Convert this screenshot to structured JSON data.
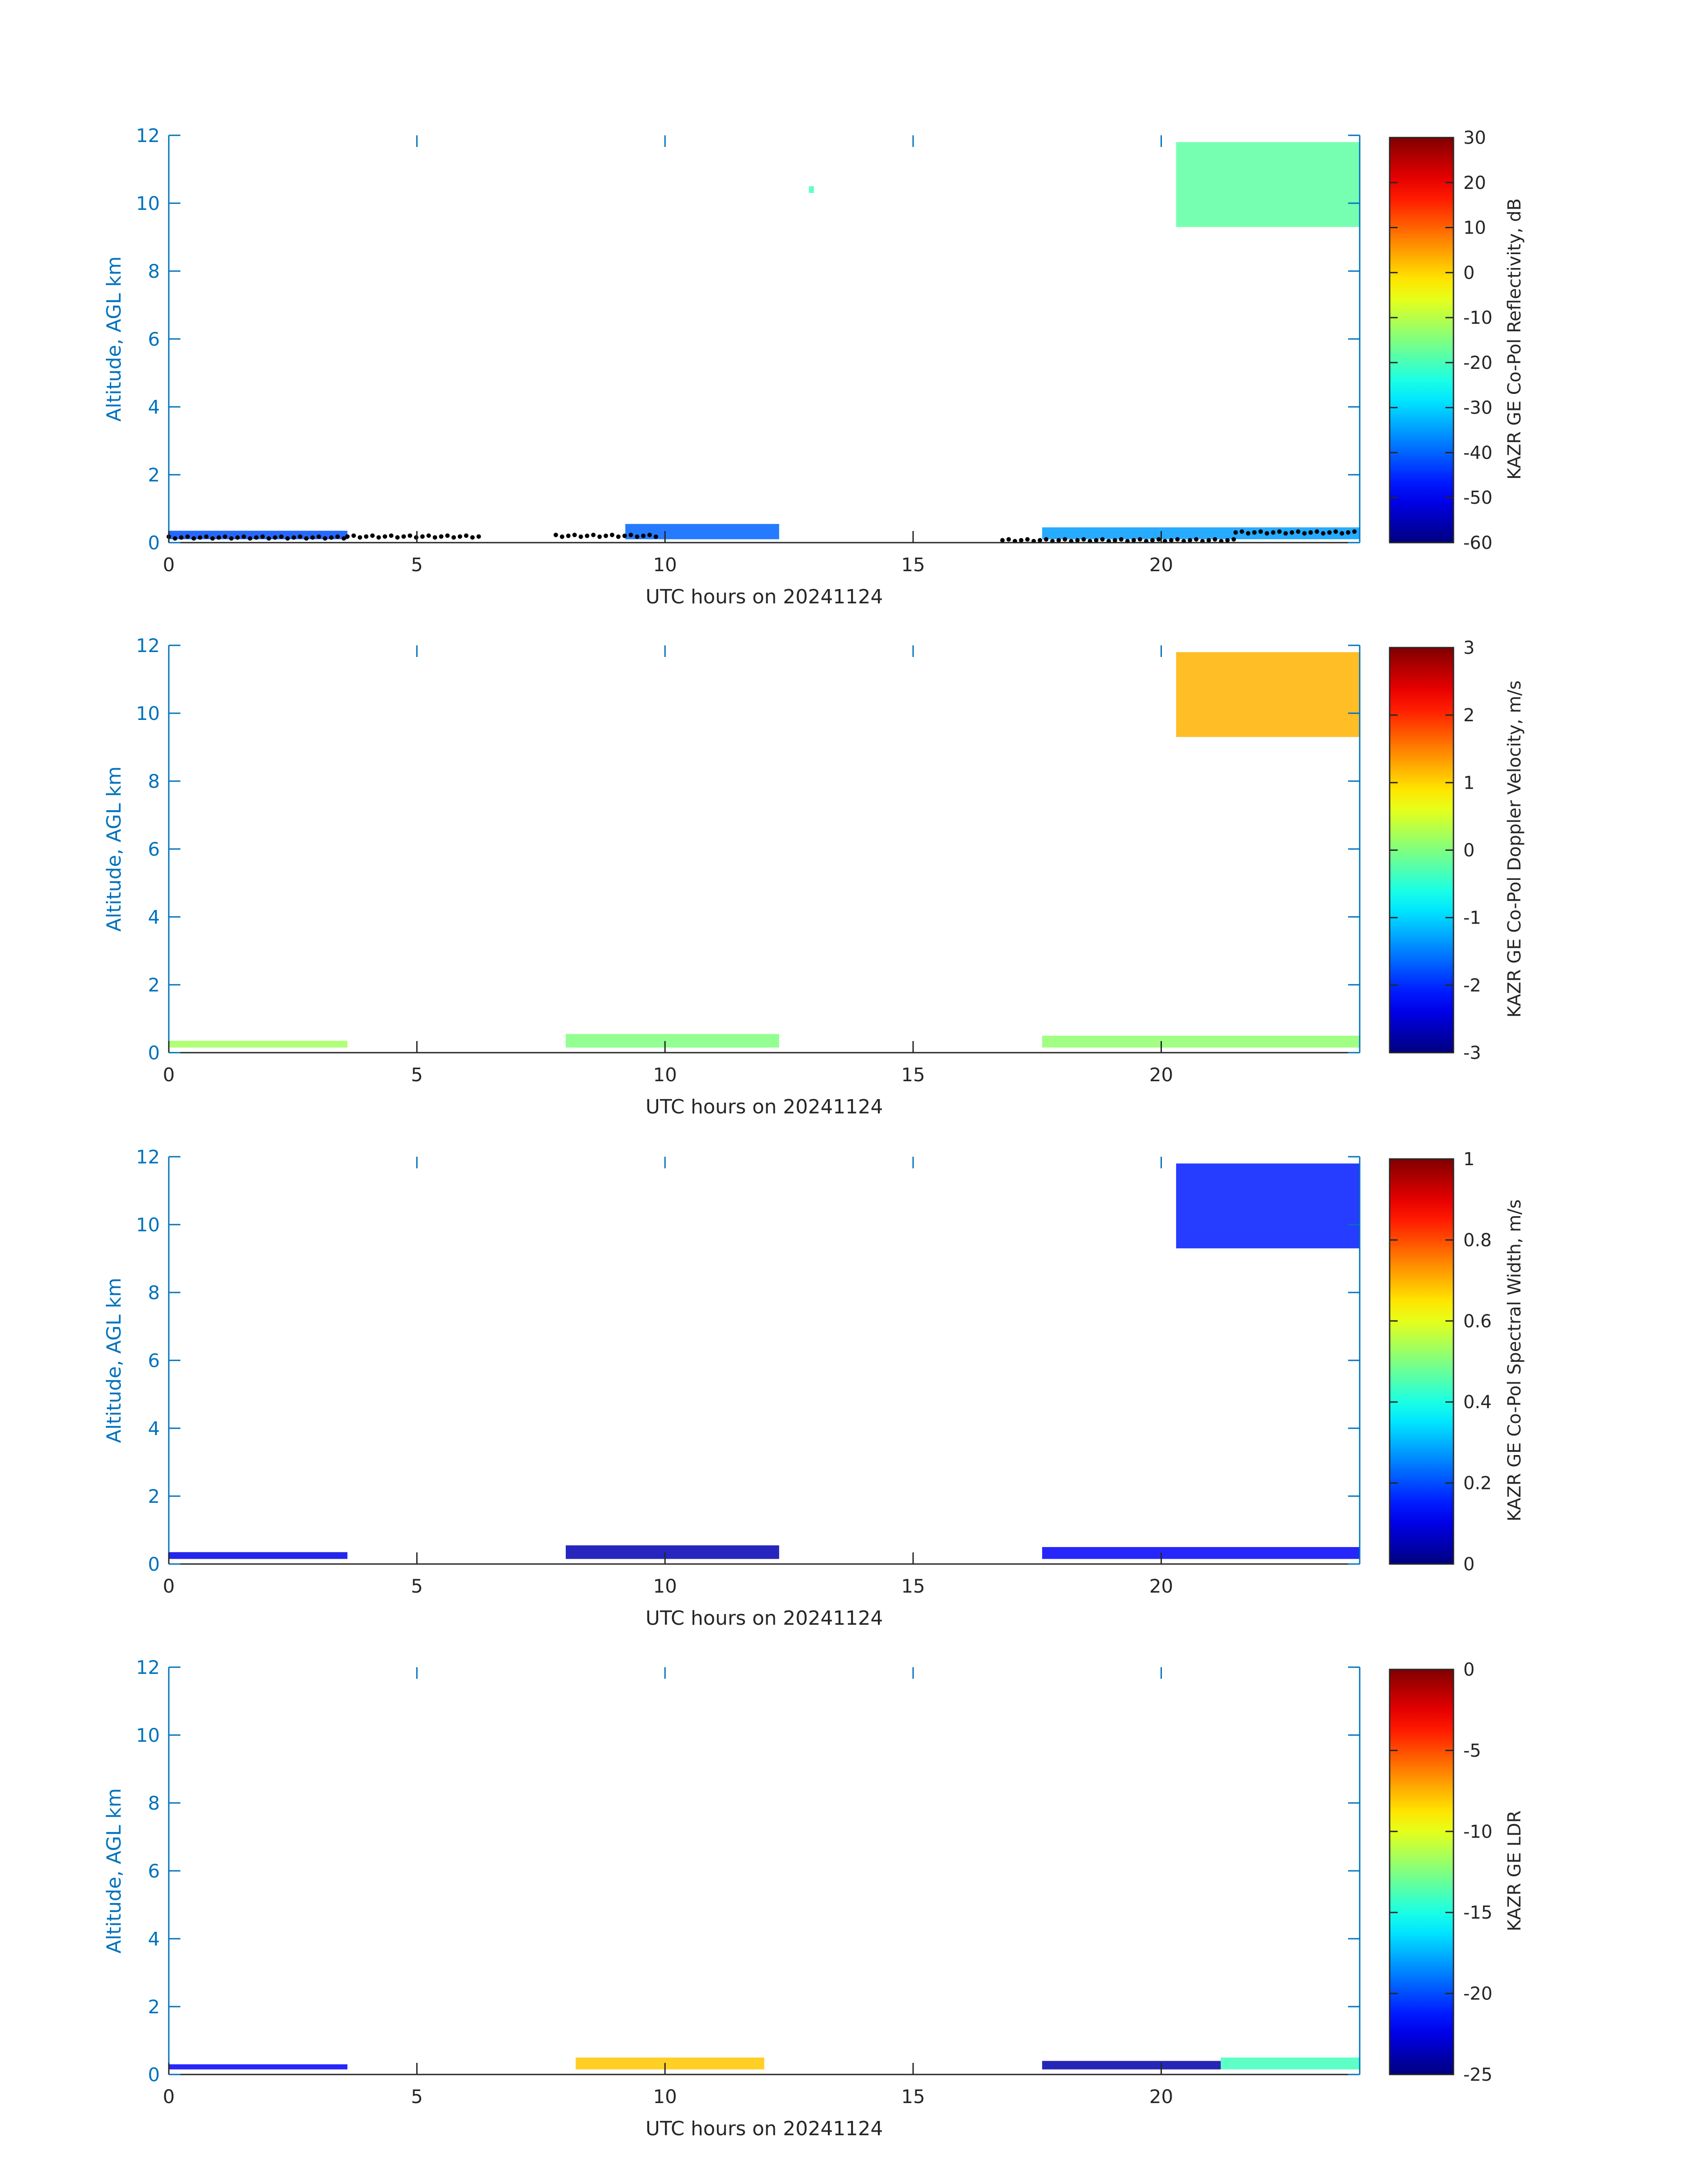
{
  "chart_data": [
    {
      "type": "heatmap",
      "xlabel": "UTC hours on 20241124",
      "ylabel": "Altitude, AGL km",
      "xlim": [
        0,
        24
      ],
      "ylim": [
        0,
        12
      ],
      "xticks": [
        "0",
        "5",
        "10",
        "15",
        "20"
      ],
      "yticks": [
        "0",
        "2",
        "4",
        "6",
        "8",
        "10",
        "12"
      ],
      "colorbar": {
        "label": "KAZR GE Co-Pol Reflectivity, dB",
        "range": [
          -60,
          30
        ],
        "ticks": [
          "30",
          "20",
          "10",
          "0",
          "-10",
          "-20",
          "-30",
          "-40",
          "-50",
          "-60"
        ],
        "colormap": "jet"
      },
      "regions": [
        {
          "x": [
            0,
            3.6
          ],
          "y": [
            0.1,
            0.35
          ],
          "value": -42
        },
        {
          "x": [
            9.2,
            12.3
          ],
          "y": [
            0.1,
            0.55
          ],
          "value": -40
        },
        {
          "x": [
            17.6,
            24
          ],
          "y": [
            0.1,
            0.45
          ],
          "value": -35
        },
        {
          "x": [
            20.3,
            24
          ],
          "y": [
            9.3,
            11.8
          ],
          "value": -18
        },
        {
          "x": [
            12.9,
            13.0
          ],
          "y": [
            10.3,
            10.5
          ],
          "value": -20
        }
      ],
      "clutter_points": [
        {
          "x": [
            0,
            3.6
          ],
          "y": 0.15
        },
        {
          "x": [
            3.6,
            6.3
          ],
          "y": 0.18
        },
        {
          "x": [
            7.8,
            9.9
          ],
          "y": 0.2
        },
        {
          "x": [
            16.8,
            21.5
          ],
          "y": 0.07
        },
        {
          "x": [
            21.5,
            24
          ],
          "y": 0.3
        }
      ]
    },
    {
      "type": "heatmap",
      "xlabel": "UTC hours on 20241124",
      "ylabel": "Altitude, AGL km",
      "xlim": [
        0,
        24
      ],
      "ylim": [
        0,
        12
      ],
      "xticks": [
        "0",
        "5",
        "10",
        "15",
        "20"
      ],
      "yticks": [
        "0",
        "2",
        "4",
        "6",
        "8",
        "10",
        "12"
      ],
      "colorbar": {
        "label": "KAZR GE Co-Pol Doppler Velocity, m/s",
        "range": [
          -3,
          3
        ],
        "ticks": [
          "3",
          "2",
          "1",
          "0",
          "-1",
          "-2",
          "-3"
        ],
        "colormap": "jet"
      },
      "regions": [
        {
          "x": [
            0,
            3.6
          ],
          "y": [
            0.15,
            0.35
          ],
          "value": 0.2
        },
        {
          "x": [
            8.0,
            12.3
          ],
          "y": [
            0.15,
            0.55
          ],
          "value": 0.0
        },
        {
          "x": [
            17.6,
            24
          ],
          "y": [
            0.15,
            0.5
          ],
          "value": 0.1
        },
        {
          "x": [
            20.3,
            24
          ],
          "y": [
            9.3,
            11.8
          ],
          "value": 1.2
        }
      ]
    },
    {
      "type": "heatmap",
      "xlabel": "UTC hours on 20241124",
      "ylabel": "Altitude, AGL km",
      "xlim": [
        0,
        24
      ],
      "ylim": [
        0,
        12
      ],
      "xticks": [
        "0",
        "5",
        "10",
        "15",
        "20"
      ],
      "yticks": [
        "0",
        "2",
        "4",
        "6",
        "8",
        "10",
        "12"
      ],
      "colorbar": {
        "label": "KAZR GE Co-Pol Spectral Width, m/s",
        "range": [
          0,
          1
        ],
        "ticks": [
          "1",
          "0.8",
          "0.6",
          "0.4",
          "0.2",
          "0"
        ],
        "colormap": "jet"
      },
      "regions": [
        {
          "x": [
            0,
            3.6
          ],
          "y": [
            0.15,
            0.35
          ],
          "value": 0.1
        },
        {
          "x": [
            8.0,
            12.3
          ],
          "y": [
            0.15,
            0.55
          ],
          "value": 0.05
        },
        {
          "x": [
            17.6,
            24
          ],
          "y": [
            0.15,
            0.5
          ],
          "value": 0.12
        },
        {
          "x": [
            20.3,
            24
          ],
          "y": [
            9.3,
            11.8
          ],
          "value": 0.15
        }
      ]
    },
    {
      "type": "heatmap",
      "xlabel": "UTC hours on 20241124",
      "ylabel": "Altitude, AGL km",
      "xlim": [
        0,
        24
      ],
      "ylim": [
        0,
        12
      ],
      "xticks": [
        "0",
        "5",
        "10",
        "15",
        "20"
      ],
      "yticks": [
        "0",
        "2",
        "4",
        "6",
        "8",
        "10",
        "12"
      ],
      "colorbar": {
        "label": "KAZR GE LDR",
        "range": [
          -25,
          0
        ],
        "ticks": [
          "0",
          "-5",
          "-10",
          "-15",
          "-20",
          "-25"
        ],
        "colormap": "jet"
      },
      "regions": [
        {
          "x": [
            0,
            3.6
          ],
          "y": [
            0.15,
            0.3
          ],
          "value": -22
        },
        {
          "x": [
            8.2,
            12.0
          ],
          "y": [
            0.15,
            0.5
          ],
          "value": -8
        },
        {
          "x": [
            17.6,
            21.2
          ],
          "y": [
            0.15,
            0.4
          ],
          "value": -24
        },
        {
          "x": [
            21.2,
            24
          ],
          "y": [
            0.15,
            0.5
          ],
          "value": -14
        }
      ]
    }
  ]
}
